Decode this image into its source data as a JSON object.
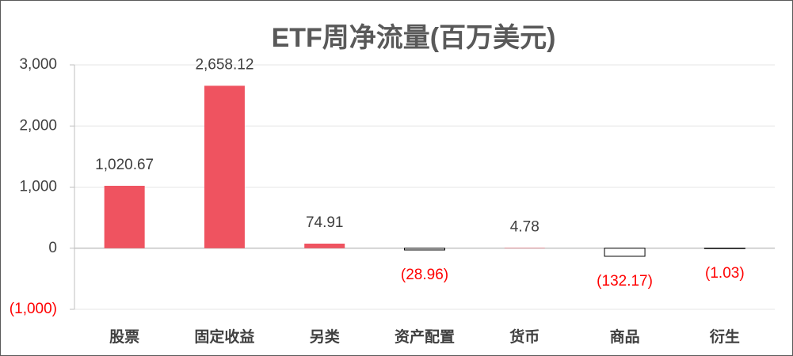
{
  "chart_data": {
    "type": "bar",
    "title": "ETF周净流量(百万美元)",
    "categories": [
      "股票",
      "固定收益",
      "另类",
      "资产配置",
      "货币",
      "商品",
      "衍生"
    ],
    "values": [
      1020.67,
      2658.12,
      74.91,
      -28.96,
      4.78,
      -132.17,
      -1.03
    ],
    "value_labels": [
      "1,020.67",
      "2,658.12",
      "74.91",
      "(28.96)",
      "4.78",
      "(132.17)",
      "(1.03)"
    ],
    "color": "#ef5360",
    "negative_color": "#ff0000",
    "ylim": [
      -1000,
      3000
    ],
    "yticks": [
      {
        "value": -1000,
        "label": "(1,000)"
      },
      0,
      {
        "value": 1000,
        "label": "1,000"
      },
      {
        "value": 2000,
        "label": "2,000"
      },
      {
        "value": 3000,
        "label": "3,000"
      }
    ],
    "grid": true
  }
}
